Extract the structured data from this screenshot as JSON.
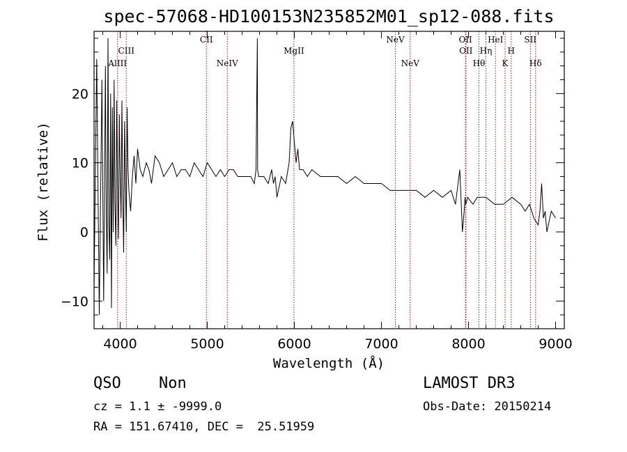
{
  "chart_data": {
    "type": "line",
    "title": "spec-57068-HD100153N235852M01_sp12-088.fits",
    "xlabel": "Wavelength (Å)",
    "ylabel": "Flux (relative)",
    "xlim": [
      3700,
      9100
    ],
    "ylim": [
      -14,
      29
    ],
    "xticks": [
      4000,
      5000,
      6000,
      7000,
      8000,
      9000
    ],
    "yticks": [
      -10,
      0,
      10,
      20
    ],
    "series": [
      {
        "name": "flux",
        "x": [
          3700,
          3730,
          3760,
          3790,
          3810,
          3830,
          3840,
          3850,
          3860,
          3870,
          3880,
          3890,
          3900,
          3910,
          3920,
          3930,
          3940,
          3950,
          3960,
          3970,
          3980,
          3990,
          4000,
          4010,
          4020,
          4030,
          4040,
          4050,
          4060,
          4070,
          4080,
          4090,
          4100,
          4120,
          4140,
          4160,
          4180,
          4200,
          4230,
          4260,
          4300,
          4330,
          4360,
          4400,
          4450,
          4500,
          4550,
          4600,
          4650,
          4700,
          4750,
          4800,
          4850,
          4900,
          4950,
          5000,
          5050,
          5100,
          5150,
          5200,
          5250,
          5300,
          5350,
          5400,
          5450,
          5500,
          5540,
          5560,
          5575,
          5578,
          5590,
          5610,
          5650,
          5700,
          5740,
          5760,
          5780,
          5800,
          5850,
          5900,
          5940,
          5960,
          5980,
          6000,
          6020,
          6040,
          6060,
          6100,
          6150,
          6200,
          6300,
          6400,
          6500,
          6600,
          6700,
          6800,
          6900,
          7000,
          7100,
          7200,
          7300,
          7400,
          7500,
          7600,
          7700,
          7800,
          7850,
          7900,
          7930,
          7950,
          7960,
          7970,
          7990,
          8050,
          8100,
          8200,
          8300,
          8400,
          8500,
          8600,
          8650,
          8700,
          8750,
          8800,
          8820,
          8840,
          8860,
          8880,
          8900,
          8950,
          9000
        ],
        "values": [
          -8,
          25,
          -12,
          22,
          -10,
          24,
          3,
          -6,
          28,
          1,
          -4,
          20,
          -11,
          18,
          0,
          22,
          4,
          -2,
          19,
          6,
          -1,
          17,
          8,
          2,
          19,
          5,
          -3,
          16,
          7,
          0,
          18,
          9,
          6,
          3,
          8,
          11,
          7,
          12,
          9,
          8,
          10,
          9,
          7,
          11,
          10,
          8,
          9,
          10,
          8,
          9,
          9,
          8,
          10,
          9,
          8,
          10,
          9,
          8,
          9,
          8,
          9,
          9,
          8,
          8,
          8,
          8,
          7,
          9,
          28,
          9,
          8,
          8,
          8,
          7,
          9,
          7,
          8,
          5,
          8,
          7,
          10,
          15,
          16,
          13,
          10,
          12,
          9,
          9,
          8,
          9,
          8,
          8,
          8,
          7,
          8,
          7,
          7,
          7,
          6,
          6,
          6,
          6,
          5,
          6,
          5,
          6,
          4,
          9,
          0,
          3,
          5,
          4,
          5,
          4,
          5,
          5,
          4,
          4,
          5,
          4,
          3,
          4,
          2,
          1,
          3,
          7,
          2,
          3,
          0,
          3,
          2
        ],
        "color": "#000000"
      }
    ],
    "lines": [
      {
        "label": "AlIII",
        "x": 3970,
        "row": 3
      },
      {
        "label": "CIII",
        "x": 4070,
        "row": 2
      },
      {
        "label": "CII",
        "x": 4990,
        "row": 1
      },
      {
        "label": "NeIV",
        "x": 5230,
        "row": 3
      },
      {
        "label": "MgII",
        "x": 5995,
        "row": 2
      },
      {
        "label": "NeV",
        "x": 7160,
        "row": 1
      },
      {
        "label": "NeV",
        "x": 7330,
        "row": 3
      },
      {
        "label": "OII",
        "x": 7965,
        "row": 1
      },
      {
        "label": "OII",
        "x": 7970,
        "row": 2
      },
      {
        "label": "Hθ",
        "x": 8120,
        "row": 3
      },
      {
        "label": "Hη",
        "x": 8200,
        "row": 2
      },
      {
        "label": "HeI",
        "x": 8310,
        "row": 1
      },
      {
        "label": "K",
        "x": 8420,
        "row": 3
      },
      {
        "label": "H",
        "x": 8490,
        "row": 2
      },
      {
        "label": "SII",
        "x": 8710,
        "row": 1
      },
      {
        "label": "Hδ",
        "x": 8770,
        "row": 3
      }
    ],
    "line_color": "#cc0000"
  },
  "info": {
    "class": "QSO",
    "subclass": "Non",
    "cz": "cz = 1.1 ± -9999.0",
    "radec": "RA = 151.67410, DEC =  25.51959",
    "survey": "LAMOST DR3",
    "obsdate": "Obs-Date: 20150214"
  }
}
